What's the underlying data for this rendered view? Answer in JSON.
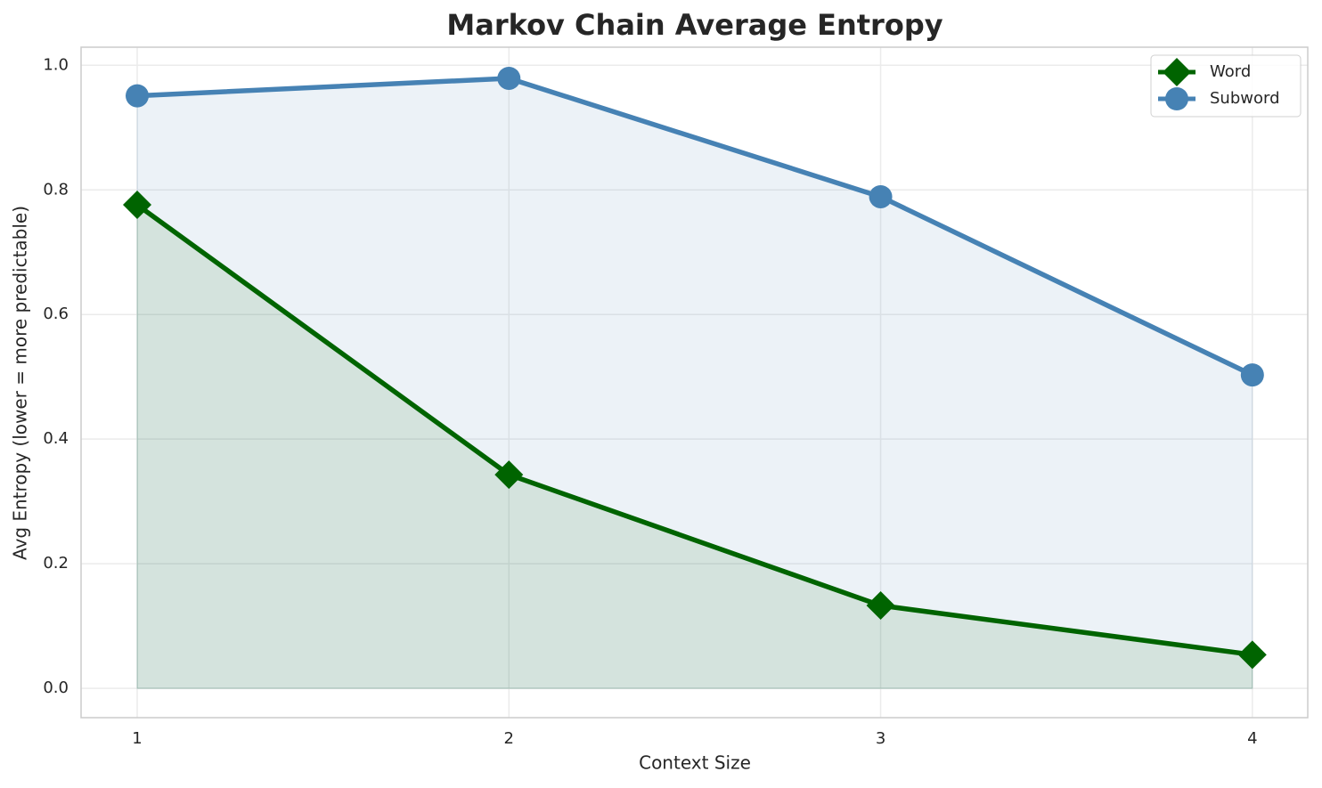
{
  "chart_data": {
    "type": "line",
    "title": "Markov Chain Average Entropy",
    "x_label": "Context Size",
    "y_label": "Avg Entropy (lower = more predictable)",
    "x": [
      1,
      2,
      3,
      4
    ],
    "series": [
      {
        "name": "Word",
        "color": "#006400",
        "marker": "diamond",
        "values": [
          0.776,
          0.343,
          0.133,
          0.054
        ]
      },
      {
        "name": "Subword",
        "color": "#4682b4",
        "marker": "circle",
        "values": [
          0.951,
          0.979,
          0.789,
          0.503
        ]
      }
    ],
    "xlim": [
      0.849,
      4.149
    ],
    "ylim": [
      -0.047,
      1.029
    ],
    "xticks": [
      1,
      2,
      3,
      4
    ],
    "yticks": [
      {
        "value": 0,
        "label": "0.0"
      },
      0.2,
      0.4,
      0.6,
      0.8,
      {
        "value": 1,
        "label": "1.0"
      }
    ],
    "grid": true,
    "fill_area": true,
    "legend": "upper right"
  }
}
